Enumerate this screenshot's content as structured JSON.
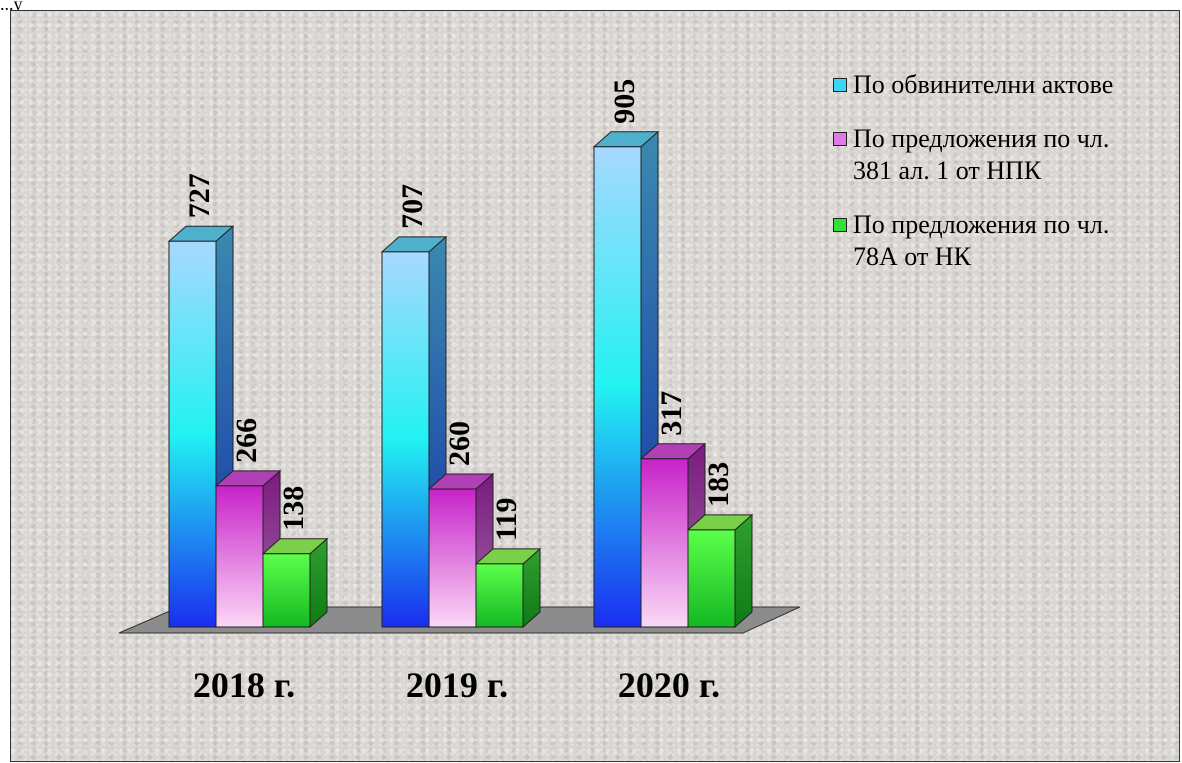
{
  "page": {
    "top_caption": "...у"
  },
  "colors": {
    "series1_front": "#3ad6f2",
    "series1_side": "#1f7f93",
    "series2_front": "#e07ae6",
    "series2_side": "#8e2a8f",
    "series3_front": "#33e03a",
    "series3_side": "#1e8a1f",
    "floor": "#8c8c8c"
  },
  "chart_data": {
    "type": "bar",
    "categories": [
      "2018 г.",
      "2019 г.",
      "2020 г."
    ],
    "series": [
      {
        "name": "По обвинителни актове",
        "values": [
          727,
          707,
          905
        ]
      },
      {
        "name": "По предложения по чл. 381 ал. 1 от НПК",
        "values": [
          266,
          260,
          317
        ]
      },
      {
        "name": "По предложения по чл. 78А от НК",
        "values": [
          138,
          119,
          183
        ]
      }
    ],
    "legend_items": [
      "По обвинителни актове",
      "По предложения по чл.\n381 ал. 1 от НПК",
      "По предложения по чл.\n78А от НК"
    ],
    "legend_position": "right",
    "grid": false,
    "three_d": true
  }
}
